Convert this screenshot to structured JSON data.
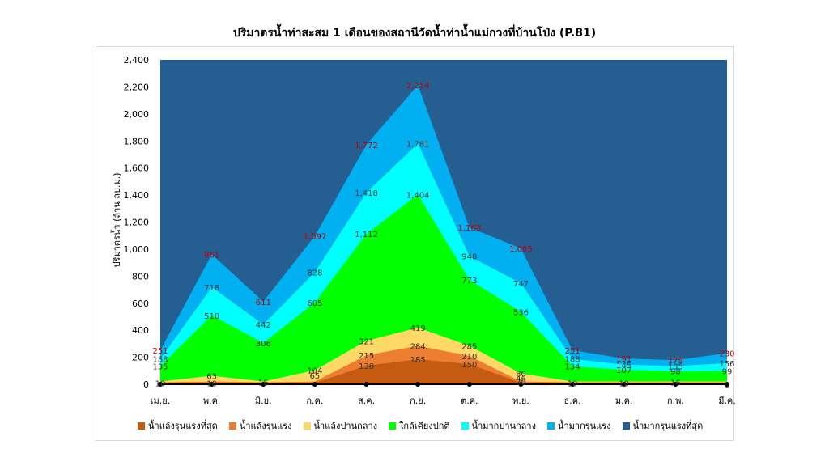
{
  "chart_data": {
    "type": "area",
    "title": "ปริมาตรน้ำท่าสะสม 1 เดือนของสถานีวัดน้ำท่าน้ำแม่กวงที่บ้านโป่ง (P.81)",
    "ylabel": "ปริมาตรน้ำ (ล้าน ลบ.ม.)",
    "xlabel": "",
    "ylim": [
      0,
      2400
    ],
    "yticks": [
      "0",
      "200",
      "400",
      "600",
      "800",
      "1,000",
      "1,200",
      "1,400",
      "1,600",
      "1,800",
      "2,000",
      "2,200",
      "2,400"
    ],
    "ytick_values": [
      0,
      200,
      400,
      600,
      800,
      1000,
      1200,
      1400,
      1600,
      1800,
      2000,
      2200,
      2400
    ],
    "categories": [
      "เม.ย.",
      "พ.ค.",
      "มิ.ย.",
      "ก.ค.",
      "ส.ค.",
      "ก.ย.",
      "ต.ค.",
      "พ.ย.",
      "ธ.ค.",
      "ม.ค.",
      "ก.พ.",
      "มี.ค."
    ],
    "series": [
      {
        "name": "น้ำแล้งรุนแรงที่สุด",
        "color": "#c55a11",
        "values": [
          10,
          10,
          10,
          10,
          138,
          185,
          150,
          10,
          10,
          10,
          10,
          10
        ]
      },
      {
        "name": "น้ำแล้งรุนแรง",
        "color": "#ed7d31",
        "values": [
          15,
          20,
          15,
          20,
          215,
          284,
          210,
          20,
          15,
          15,
          15,
          15
        ]
      },
      {
        "name": "น้ำแล้งปานกลาง",
        "color": "#ffd966",
        "values": [
          20,
          63,
          20,
          104,
          321,
          419,
          285,
          80,
          20,
          20,
          20,
          20
        ]
      },
      {
        "name": "ใกล้เคียงปกติ",
        "color": "#00ff00",
        "values": [
          135,
          510,
          306,
          605,
          1112,
          1404,
          773,
          536,
          134,
          107,
          98,
          99
        ]
      },
      {
        "name": "น้ำมากปานกลาง",
        "color": "#00ffff",
        "values": [
          188,
          718,
          442,
          828,
          1418,
          1781,
          948,
          747,
          188,
          145,
          135,
          156
        ]
      },
      {
        "name": "น้ำมากรุนแรง",
        "color": "#00b0f0",
        "values": [
          251,
          961,
          611,
          1097,
          1772,
          2214,
          1160,
          1005,
          251,
          191,
          179,
          230
        ]
      },
      {
        "name": "น้ำมากรุนแรงที่สุด",
        "color": "#255e91",
        "values": [
          2400,
          2400,
          2400,
          2400,
          2400,
          2400,
          2400,
          2400,
          2400,
          2400,
          2400,
          2400
        ]
      }
    ],
    "data_labels": [
      {
        "category_index": 0,
        "text": "251",
        "value": 251,
        "color": "#c00000"
      },
      {
        "category_index": 0,
        "text": "188",
        "value": 188,
        "color": "#333333"
      },
      {
        "category_index": 0,
        "text": "135",
        "value": 135,
        "color": "#333333"
      },
      {
        "category_index": 0,
        "text": "10",
        "value": 10,
        "color": "#333333"
      },
      {
        "category_index": 1,
        "text": "961",
        "value": 961,
        "color": "#c00000"
      },
      {
        "category_index": 1,
        "text": "718",
        "value": 718,
        "color": "#333333"
      },
      {
        "category_index": 1,
        "text": "510",
        "value": 510,
        "color": "#333333"
      },
      {
        "category_index": 1,
        "text": "63",
        "value": 63,
        "color": "#333333"
      },
      {
        "category_index": 1,
        "text": "10",
        "value": 10,
        "color": "#333333"
      },
      {
        "category_index": 2,
        "text": "611",
        "value": 611,
        "color": "#c00000"
      },
      {
        "category_index": 2,
        "text": "442",
        "value": 442,
        "color": "#333333"
      },
      {
        "category_index": 2,
        "text": "306",
        "value": 306,
        "color": "#333333"
      },
      {
        "category_index": 2,
        "text": "16",
        "value": 16,
        "color": "#333333"
      },
      {
        "category_index": 3,
        "text": "1,097",
        "value": 1097,
        "color": "#c00000"
      },
      {
        "category_index": 3,
        "text": "828",
        "value": 828,
        "color": "#333333"
      },
      {
        "category_index": 3,
        "text": "605",
        "value": 605,
        "color": "#333333"
      },
      {
        "category_index": 3,
        "text": "104",
        "value": 104,
        "color": "#333333"
      },
      {
        "category_index": 3,
        "text": "65",
        "value": 65,
        "color": "#333333"
      },
      {
        "category_index": 4,
        "text": "1,772",
        "value": 1772,
        "color": "#c00000"
      },
      {
        "category_index": 4,
        "text": "1,418",
        "value": 1418,
        "color": "#333333"
      },
      {
        "category_index": 4,
        "text": "1,112",
        "value": 1112,
        "color": "#333333"
      },
      {
        "category_index": 4,
        "text": "321",
        "value": 321,
        "color": "#333333"
      },
      {
        "category_index": 4,
        "text": "215",
        "value": 215,
        "color": "#333333"
      },
      {
        "category_index": 4,
        "text": "138",
        "value": 138,
        "color": "#333333"
      },
      {
        "category_index": 5,
        "text": "2,214",
        "value": 2214,
        "color": "#c00000"
      },
      {
        "category_index": 5,
        "text": "1,781",
        "value": 1781,
        "color": "#333333"
      },
      {
        "category_index": 5,
        "text": "1,404",
        "value": 1404,
        "color": "#333333"
      },
      {
        "category_index": 5,
        "text": "419",
        "value": 419,
        "color": "#333333"
      },
      {
        "category_index": 5,
        "text": "284",
        "value": 284,
        "color": "#333333"
      },
      {
        "category_index": 5,
        "text": "185",
        "value": 185,
        "color": "#333333"
      },
      {
        "category_index": 6,
        "text": "1,160",
        "value": 1160,
        "color": "#c00000"
      },
      {
        "category_index": 6,
        "text": "948",
        "value": 948,
        "color": "#333333"
      },
      {
        "category_index": 6,
        "text": "773",
        "value": 773,
        "color": "#333333"
      },
      {
        "category_index": 6,
        "text": "285",
        "value": 285,
        "color": "#333333"
      },
      {
        "category_index": 6,
        "text": "210",
        "value": 210,
        "color": "#333333"
      },
      {
        "category_index": 6,
        "text": "150",
        "value": 150,
        "color": "#333333"
      },
      {
        "category_index": 7,
        "text": "1,005",
        "value": 1005,
        "color": "#c00000"
      },
      {
        "category_index": 7,
        "text": "747",
        "value": 747,
        "color": "#333333"
      },
      {
        "category_index": 7,
        "text": "536",
        "value": 536,
        "color": "#333333"
      },
      {
        "category_index": 7,
        "text": "80",
        "value": 80,
        "color": "#333333"
      },
      {
        "category_index": 7,
        "text": "46",
        "value": 46,
        "color": "#333333"
      },
      {
        "category_index": 7,
        "text": "20",
        "value": 20,
        "color": "#333333"
      },
      {
        "category_index": 8,
        "text": "251",
        "value": 251,
        "color": "#c00000"
      },
      {
        "category_index": 8,
        "text": "188",
        "value": 188,
        "color": "#333333"
      },
      {
        "category_index": 8,
        "text": "134",
        "value": 134,
        "color": "#333333"
      },
      {
        "category_index": 8,
        "text": "10",
        "value": 10,
        "color": "#333333"
      },
      {
        "category_index": 9,
        "text": "191",
        "value": 191,
        "color": "#c00000"
      },
      {
        "category_index": 9,
        "text": "145",
        "value": 145,
        "color": "#333333"
      },
      {
        "category_index": 9,
        "text": "107",
        "value": 107,
        "color": "#333333"
      },
      {
        "category_index": 9,
        "text": "10",
        "value": 10,
        "color": "#333333"
      },
      {
        "category_index": 10,
        "text": "179",
        "value": 179,
        "color": "#c00000"
      },
      {
        "category_index": 10,
        "text": "135",
        "value": 135,
        "color": "#333333"
      },
      {
        "category_index": 10,
        "text": "98",
        "value": 98,
        "color": "#333333"
      },
      {
        "category_index": 10,
        "text": "16",
        "value": 16,
        "color": "#333333"
      },
      {
        "category_index": 11,
        "text": "230",
        "value": 230,
        "color": "#c00000"
      },
      {
        "category_index": 11,
        "text": "156",
        "value": 156,
        "color": "#333333"
      },
      {
        "category_index": 11,
        "text": "99",
        "value": 99,
        "color": "#333333"
      },
      {
        "category_index": 11,
        "text": "0",
        "value": 0,
        "color": "#333333"
      }
    ],
    "grid": false,
    "legend_position": "bottom"
  }
}
